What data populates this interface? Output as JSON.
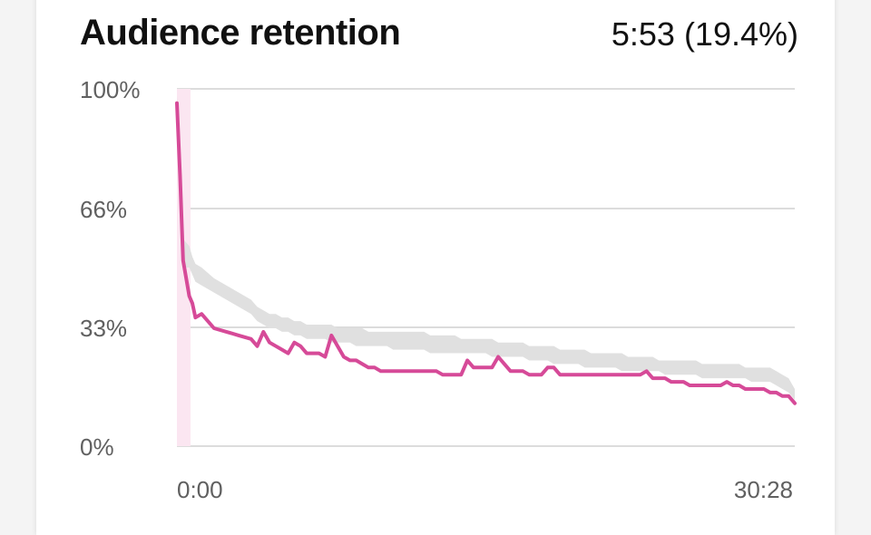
{
  "header": {
    "title": "Audience retention",
    "summary": "5:53 (19.4%)"
  },
  "colors": {
    "series": "#d64a98",
    "typical_band": "#e0e0e0",
    "intro_highlight": "#fbe6f1",
    "grid": "#dcdcdc"
  },
  "chart_data": {
    "type": "line",
    "title": "Audience retention",
    "x_unit": "percent of video duration",
    "x_tick_labels": [
      "0:00",
      "30:28"
    ],
    "y_tick_labels": [
      "100%",
      "66%",
      "33%",
      "0%"
    ],
    "ylim": [
      0,
      100
    ],
    "grid": true,
    "x_pct": [
      0,
      0.5,
      1,
      2,
      2.5,
      3,
      4,
      6,
      8,
      10,
      12,
      13,
      14,
      15,
      16,
      17,
      18,
      19,
      20,
      21,
      22,
      23,
      24,
      25,
      26,
      27,
      28,
      29,
      30,
      31,
      32,
      33,
      34,
      35,
      36,
      37,
      38,
      39,
      40,
      41,
      42,
      43,
      44,
      45,
      46,
      47,
      48,
      49,
      50,
      51,
      52,
      53,
      54,
      55,
      56,
      57,
      58,
      59,
      60,
      61,
      62,
      63,
      64,
      65,
      66,
      67,
      68,
      69,
      70,
      71,
      72,
      73,
      74,
      75,
      76,
      77,
      78,
      79,
      80,
      81,
      82,
      83,
      84,
      85,
      86,
      87,
      88,
      89,
      90,
      91,
      92,
      93,
      94,
      95,
      96,
      97,
      98,
      99,
      100
    ],
    "series": [
      {
        "values": [
          96,
          76,
          52,
          42,
          40,
          36,
          37,
          33,
          32,
          31,
          30,
          28,
          32,
          29,
          28,
          27,
          26,
          29,
          28,
          26,
          26,
          26,
          25,
          31,
          28,
          25,
          24,
          24,
          23,
          22,
          22,
          21,
          21,
          21,
          21,
          21,
          21,
          21,
          21,
          21,
          21,
          20,
          20,
          20,
          20,
          24,
          22,
          22,
          22,
          22,
          25,
          23,
          21,
          21,
          21,
          20,
          20,
          20,
          22,
          22,
          20,
          20,
          20,
          20,
          20,
          20,
          20,
          20,
          20,
          20,
          20,
          20,
          20,
          20,
          21,
          19,
          19,
          19,
          18,
          18,
          18,
          17,
          17,
          17,
          17,
          17,
          17,
          18,
          17,
          17,
          16,
          16,
          16,
          16,
          15,
          15,
          14,
          14,
          12
        ]
      }
    ],
    "typical_band": {
      "upper": [
        98,
        80,
        58,
        56,
        53,
        51,
        50,
        47,
        45,
        43,
        41,
        39,
        38,
        37,
        37,
        36,
        36,
        35,
        35,
        34,
        34,
        34,
        34,
        34,
        33,
        33,
        33,
        33,
        33,
        32,
        32,
        32,
        32,
        32,
        32,
        32,
        32,
        32,
        32,
        31,
        31,
        31,
        31,
        31,
        30,
        30,
        30,
        30,
        30,
        30,
        29,
        29,
        29,
        29,
        29,
        28,
        28,
        28,
        28,
        28,
        27,
        27,
        27,
        27,
        27,
        26,
        26,
        26,
        26,
        26,
        26,
        25,
        25,
        25,
        25,
        25,
        24,
        24,
        24,
        24,
        24,
        24,
        24,
        23,
        23,
        23,
        23,
        23,
        23,
        23,
        22,
        22,
        22,
        22,
        22,
        21,
        20,
        19,
        16
      ],
      "lower": [
        93,
        72,
        50,
        50,
        48,
        46,
        45,
        43,
        41,
        39,
        37,
        35,
        34,
        33,
        33,
        32,
        32,
        31,
        31,
        30,
        30,
        30,
        30,
        29,
        29,
        29,
        29,
        28,
        28,
        28,
        28,
        28,
        28,
        27,
        27,
        27,
        27,
        27,
        27,
        26,
        26,
        26,
        26,
        26,
        26,
        26,
        26,
        26,
        26,
        25,
        25,
        25,
        25,
        25,
        25,
        24,
        24,
        24,
        24,
        23,
        23,
        23,
        23,
        23,
        22,
        22,
        22,
        22,
        22,
        22,
        21,
        21,
        21,
        21,
        21,
        21,
        21,
        20,
        20,
        20,
        20,
        20,
        20,
        19,
        19,
        19,
        19,
        19,
        19,
        19,
        19,
        18,
        18,
        18,
        18,
        17,
        16,
        15,
        13
      ]
    },
    "intro_highlight_pct": [
      0,
      2.2
    ]
  }
}
